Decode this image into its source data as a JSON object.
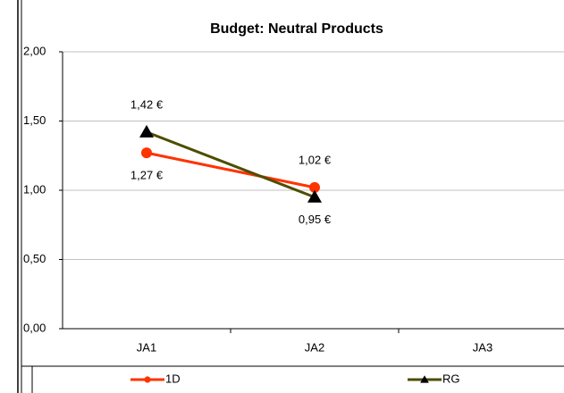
{
  "chart_data": {
    "type": "line",
    "title": "Budget: Neutral Products",
    "categories": [
      "JA1",
      "JA2",
      "JA3"
    ],
    "series": [
      {
        "name": "1D",
        "color": "#ff3300",
        "marker": "circle",
        "values": [
          1.27,
          1.02,
          null
        ],
        "value_labels": [
          "1,27 €",
          "1,02 €",
          null
        ]
      },
      {
        "name": "RG",
        "color": "#4d4d00",
        "marker": "triangle",
        "values": [
          1.42,
          0.95,
          null
        ],
        "value_labels": [
          "1,42 €",
          "0,95 €",
          null
        ]
      }
    ],
    "ylim": [
      0,
      2
    ],
    "yticks": [
      {
        "value": 0,
        "label": "0,00"
      },
      {
        "value": 0.5,
        "label": "0,50"
      },
      {
        "value": 1,
        "label": "1,00"
      },
      {
        "value": 1.5,
        "label": "1,50"
      },
      {
        "value": 2,
        "label": "2,00"
      }
    ],
    "grid": true,
    "legend": "bottom"
  }
}
